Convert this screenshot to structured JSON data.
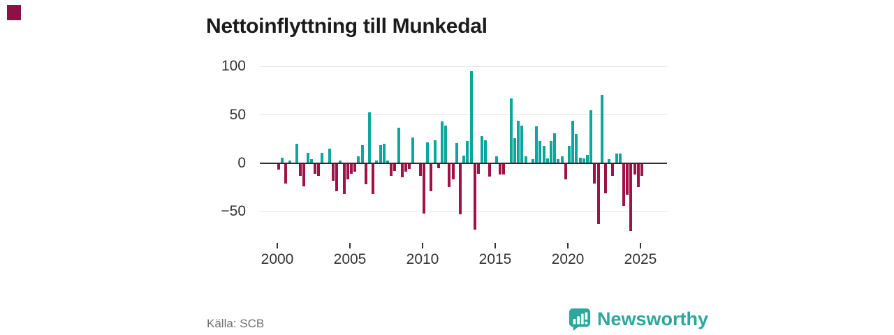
{
  "title": "Nettoinflyttning till Munkedal",
  "source": "Källa: SCB",
  "brand": {
    "name": "Newsworthy"
  },
  "colors": {
    "positive": "#0ba69c",
    "negative": "#a01148",
    "zero_axis": "#2e2e2e",
    "grid": "#e5e5e5",
    "tick_text": "#333333",
    "title_text": "#1b1b1b",
    "source_text": "#717171",
    "brand_teal": "#2da79c"
  },
  "chart_data": {
    "type": "bar",
    "title": "Nettoinflyttning till Munkedal",
    "frequency": "quarterly",
    "start": "2000 Q1",
    "end": "2025 Q1",
    "xlabel": "",
    "ylabel": "",
    "ylim": [
      -75,
      105
    ],
    "grid": true,
    "y_ticks": [
      100,
      50,
      0,
      -50
    ],
    "y_tick_labels": [
      "100",
      "50",
      "0",
      "−50"
    ],
    "x_tick_years": [
      2000,
      2005,
      2010,
      2015,
      2020,
      2025
    ],
    "x_tick_labels": [
      "2000",
      "2005",
      "2010",
      "2015",
      "2020",
      "2025"
    ],
    "values": [
      -6,
      6,
      -20,
      3,
      0,
      20,
      -12,
      -23,
      11,
      4,
      -10,
      -12,
      11,
      0,
      15,
      -17,
      -28,
      3,
      -31,
      -16,
      -10,
      -8,
      7,
      19,
      -21,
      53,
      -31,
      3,
      19,
      20,
      3,
      -12,
      -7,
      37,
      -14,
      -8,
      -5,
      27,
      0,
      -12,
      -51,
      22,
      -28,
      24,
      -4,
      43,
      39,
      -24,
      -16,
      21,
      -52,
      8,
      23,
      95,
      -68,
      -10,
      28,
      24,
      -13,
      0,
      7,
      -11,
      -11,
      0,
      67,
      26,
      44,
      39,
      7,
      0,
      4,
      38,
      23,
      18,
      5,
      23,
      31,
      4,
      7,
      -16,
      18,
      44,
      30,
      6,
      5,
      9,
      55,
      -20,
      -62,
      71,
      -30,
      4,
      -12,
      10,
      10,
      -43,
      -32,
      -69,
      -11,
      -24,
      -12
    ]
  }
}
